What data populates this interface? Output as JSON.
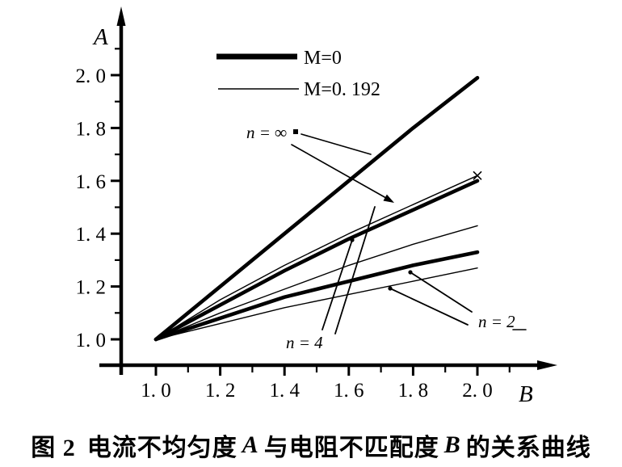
{
  "figure": {
    "caption": {
      "fig_label": "图 2",
      "part1": "电流不均匀度",
      "var1": "A",
      "part2": "与电阻不匹配度",
      "var2": "B",
      "part3": "的关系曲线"
    }
  },
  "chart_data": {
    "type": "line",
    "title": "",
    "xlabel": "B",
    "ylabel": "A",
    "xlim": [
      1.0,
      2.1
    ],
    "ylim": [
      1.0,
      2.1
    ],
    "grid": false,
    "x_ticks": [
      "1. 0",
      "1. 2",
      "1. 4",
      "1. 6",
      "1. 8",
      "2. 0"
    ],
    "y_ticks": [
      "1. 0",
      "1. 2",
      "1. 4",
      "1. 6",
      "1. 8",
      "2. 0"
    ],
    "x_tick_values": [
      1.0,
      1.2,
      1.4,
      1.6,
      1.8,
      2.0
    ],
    "y_tick_values": [
      1.0,
      1.2,
      1.4,
      1.6,
      1.8,
      2.0
    ],
    "minor_x_tick_values": [
      1.1,
      1.3,
      1.5,
      1.7,
      1.9,
      2.1
    ],
    "minor_y_tick_values": [
      1.1,
      1.3,
      1.5,
      1.7,
      1.9,
      2.1
    ],
    "x": [
      1.0,
      1.2,
      1.4,
      1.6,
      1.8,
      2.0
    ],
    "series": [
      {
        "name": "n=∞, M=0",
        "n": "∞",
        "M": "0",
        "style": "thick",
        "values": [
          1.0,
          1.2,
          1.4,
          1.6,
          1.8,
          1.99
        ]
      },
      {
        "name": "n=∞, M=0.192",
        "n": "∞",
        "M": "0.192",
        "style": "thin",
        "marker_end": "x",
        "values": [
          1.0,
          1.15,
          1.28,
          1.4,
          1.51,
          1.62
        ]
      },
      {
        "name": "n=4, M=0",
        "n": "4",
        "M": "0",
        "style": "thick",
        "values": [
          1.0,
          1.13,
          1.26,
          1.38,
          1.49,
          1.6
        ]
      },
      {
        "name": "n=4, M=0.192",
        "n": "4",
        "M": "0.192",
        "style": "thin",
        "values": [
          1.0,
          1.1,
          1.19,
          1.28,
          1.36,
          1.43
        ]
      },
      {
        "name": "n=2, M=0",
        "n": "2",
        "M": "0",
        "style": "thick",
        "values": [
          1.0,
          1.08,
          1.16,
          1.22,
          1.28,
          1.33
        ]
      },
      {
        "name": "n=2, M=0.192",
        "n": "2",
        "M": "0.192",
        "style": "thin",
        "values": [
          1.0,
          1.06,
          1.12,
          1.17,
          1.22,
          1.27
        ]
      }
    ],
    "legend": {
      "position": "top-center",
      "entries": [
        {
          "label": "M=0",
          "style": "thick"
        },
        {
          "label": "M=0. 192",
          "style": "thin"
        }
      ]
    },
    "annotations": [
      {
        "label": "n = ∞"
      },
      {
        "label": "n = 4"
      },
      {
        "label": "n = 2"
      }
    ],
    "colors": {
      "line": "#000000",
      "background": "#ffffff"
    }
  }
}
